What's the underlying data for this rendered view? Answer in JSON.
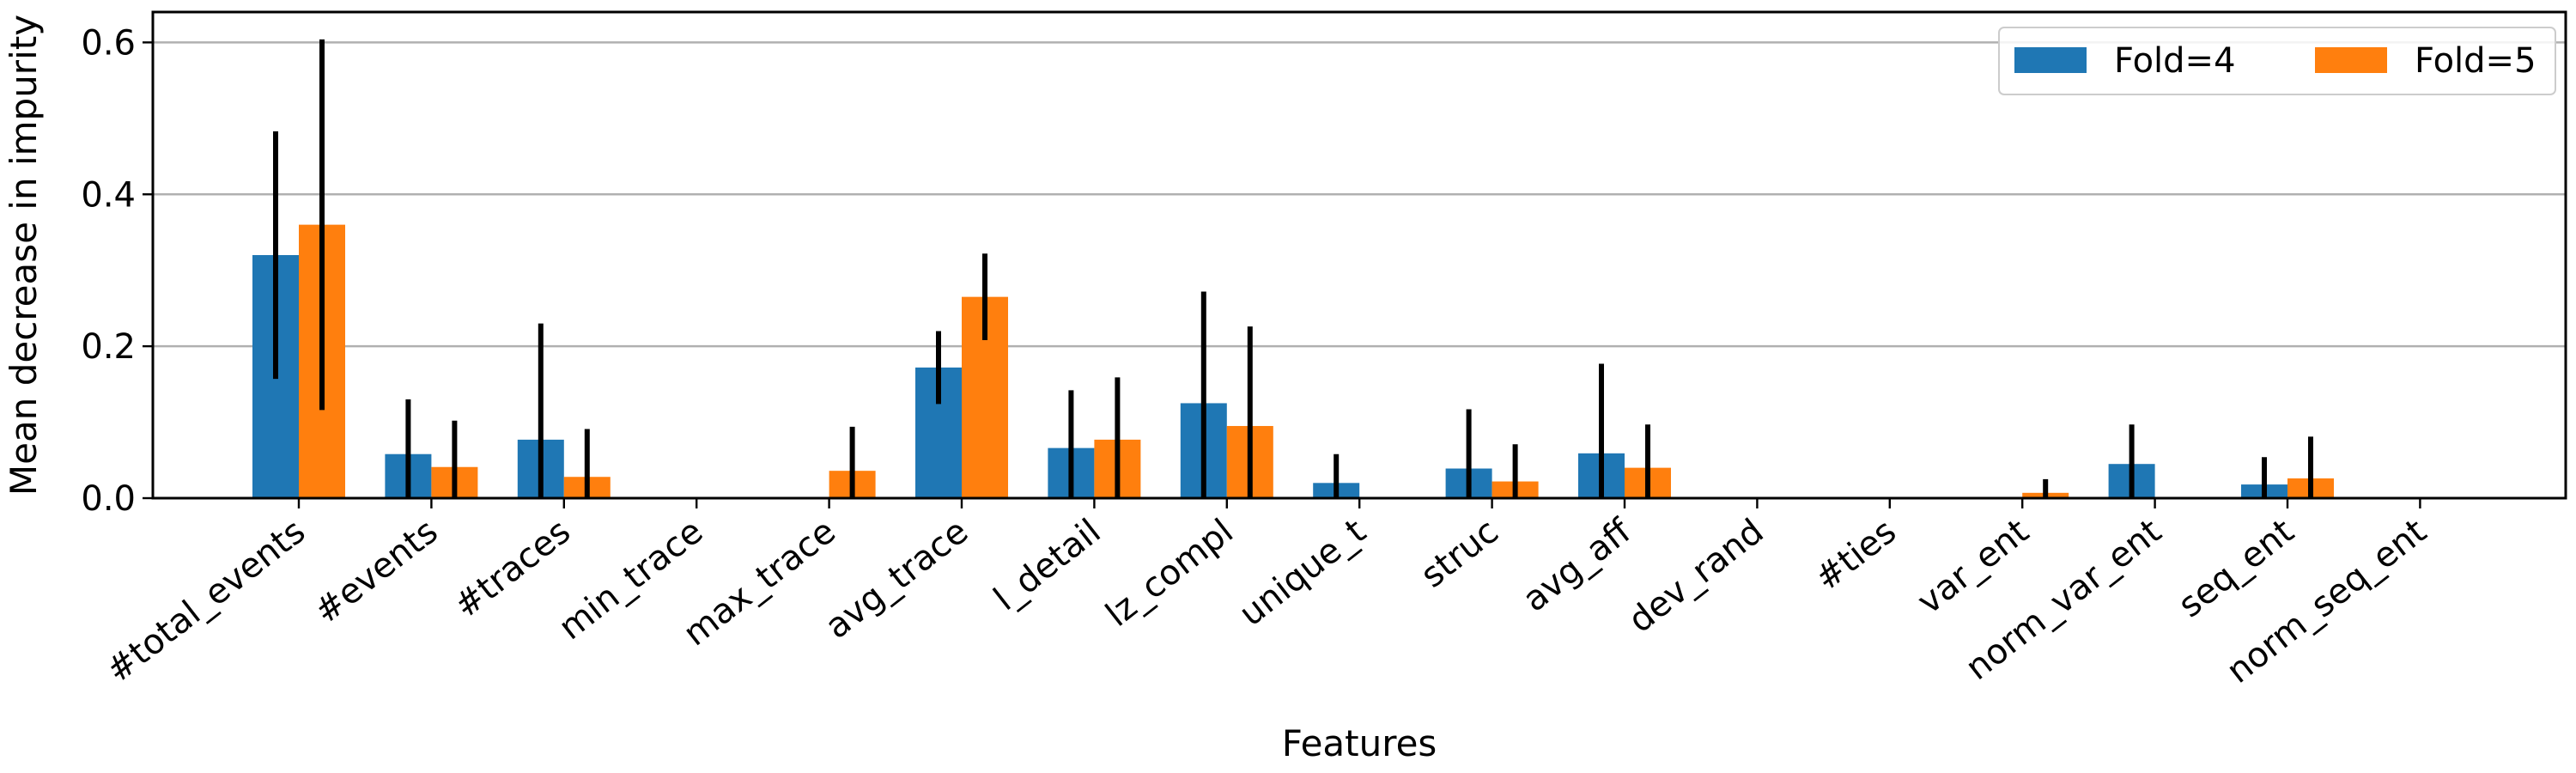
{
  "chart_data": {
    "type": "bar",
    "title": "",
    "xlabel": "Features",
    "ylabel": "Mean decrease in impurity",
    "ylim": [
      0,
      0.64
    ],
    "yticks": [
      0.0,
      0.2,
      0.4,
      0.6
    ],
    "ytick_labels": [
      "0.0",
      "0.2",
      "0.4",
      "0.6"
    ],
    "grid": "horizontal",
    "legend_position": "top-right",
    "categories": [
      "#total_events",
      "#events",
      "#traces",
      "min_trace",
      "max_trace",
      "avg_trace",
      "l_detail",
      "lz_compl",
      "unique_t",
      "struc",
      "avg_aff",
      "dev_rand",
      "#ties",
      "var_ent",
      "norm_var_ent",
      "seq_ent",
      "norm_seq_ent"
    ],
    "series": [
      {
        "name": "Fold=4",
        "color": "#1f77b4",
        "values": [
          0.32,
          0.058,
          0.077,
          0.0,
          0.0,
          0.172,
          0.066,
          0.125,
          0.02,
          0.039,
          0.059,
          0.0,
          0.0,
          0.0,
          0.045,
          0.018,
          0.0
        ],
        "errors": [
          0.163,
          0.072,
          0.153,
          0.0,
          0.0,
          0.048,
          0.076,
          0.147,
          0.038,
          0.078,
          0.118,
          0.0,
          0.0,
          0.0,
          0.052,
          0.036,
          0.0
        ]
      },
      {
        "name": "Fold=5",
        "color": "#ff7f0e",
        "values": [
          0.36,
          0.041,
          0.028,
          0.0,
          0.036,
          0.265,
          0.077,
          0.095,
          0.0,
          0.022,
          0.04,
          0.0,
          0.0,
          0.007,
          0.0,
          0.026,
          0.0
        ],
        "errors": [
          0.244,
          0.061,
          0.063,
          0.0,
          0.058,
          0.057,
          0.082,
          0.131,
          0.0,
          0.049,
          0.057,
          0.0,
          0.0,
          0.018,
          0.0,
          0.055,
          0.0
        ]
      }
    ]
  }
}
